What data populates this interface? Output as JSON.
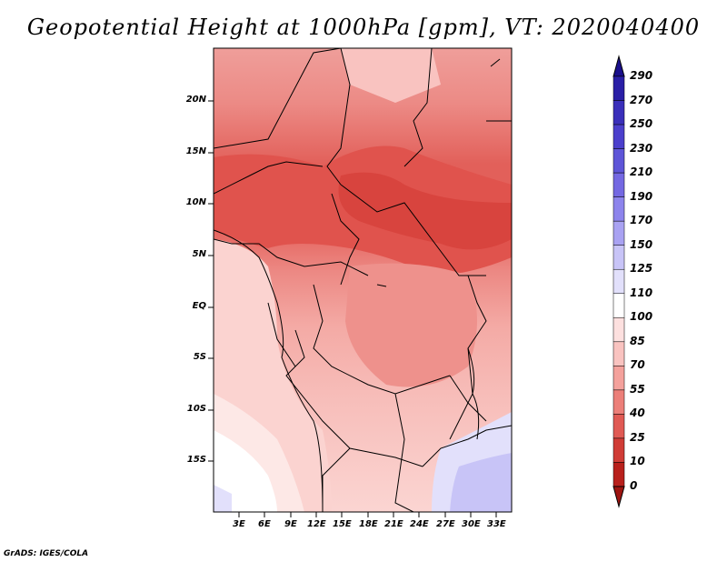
{
  "title": "Geopotential Height at 1000hPa [gpm], VT: 2020040400",
  "credit": "GrADS: IGES/COLA",
  "map": {
    "lat_labels": [
      "20N",
      "15N",
      "10N",
      "5N",
      "EQ",
      "5S",
      "10S",
      "15S"
    ],
    "lon_labels": [
      "3E",
      "6E",
      "9E",
      "12E",
      "15E",
      "18E",
      "21E",
      "24E",
      "27E",
      "30E",
      "33E"
    ]
  },
  "colorbar": {
    "labels": [
      "290",
      "270",
      "250",
      "230",
      "210",
      "190",
      "170",
      "150",
      "125",
      "110",
      "100",
      "85",
      "70",
      "55",
      "40",
      "25",
      "10",
      "0"
    ],
    "colors": [
      "#1a0f8c",
      "#2a1fa6",
      "#3a2fba",
      "#4b3fcc",
      "#5e55d8",
      "#7468e2",
      "#8d84ec",
      "#a9a2f2",
      "#c8c4f7",
      "#e2e0fb",
      "#ffffff",
      "#fde0df",
      "#f9c3c0",
      "#f4a19c",
      "#ec7f79",
      "#e05a54",
      "#d03c36",
      "#b8201c",
      "#9e1410"
    ]
  }
}
